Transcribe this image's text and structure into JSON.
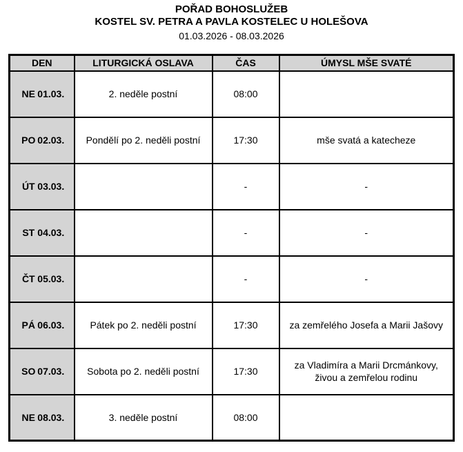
{
  "header": {
    "title": "POŘAD BOHOSLUŽEB",
    "subtitle": "KOSTEL SV. PETRA A PAVLA KOSTELEC U HOLEŠOVA",
    "date_range": "01.03.2026 - 08.03.2026"
  },
  "table": {
    "headers": {
      "day": "DEN",
      "celebration": "LITURGICKÁ OSLAVA",
      "time": "ČAS",
      "intention": "ÚMYSL MŠE SVATÉ"
    },
    "rows": [
      {
        "day": "NE",
        "date": "01.03.",
        "celebration": "2. neděle postní",
        "time": "08:00",
        "intention": ""
      },
      {
        "day": "PO",
        "date": "02.03.",
        "celebration": "Pondělí po 2. neděli postní",
        "time": "17:30",
        "intention": "mše svatá a katecheze"
      },
      {
        "day": "ÚT",
        "date": "03.03.",
        "celebration": "",
        "time": "-",
        "intention": "-"
      },
      {
        "day": "ST",
        "date": "04.03.",
        "celebration": "",
        "time": "-",
        "intention": "-"
      },
      {
        "day": "ČT",
        "date": "05.03.",
        "celebration": "",
        "time": "-",
        "intention": "-"
      },
      {
        "day": "PÁ",
        "date": "06.03.",
        "celebration": "Pátek po 2. neděli postní",
        "time": "17:30",
        "intention": "za zemřelého Josefa a Marii Jašovy"
      },
      {
        "day": "SO",
        "date": "07.03.",
        "celebration": "Sobota po 2. neděli postní",
        "time": "17:30",
        "intention": "za Vladimíra a Marii Drcmánkovy, živou a zemřelou rodinu"
      },
      {
        "day": "NE",
        "date": "08.03.",
        "celebration": "3. neděle postní",
        "time": "08:00",
        "intention": ""
      }
    ]
  },
  "colors": {
    "header_bg": "#d4d4d4",
    "border": "#000000",
    "background": "#ffffff",
    "text": "#000000"
  }
}
